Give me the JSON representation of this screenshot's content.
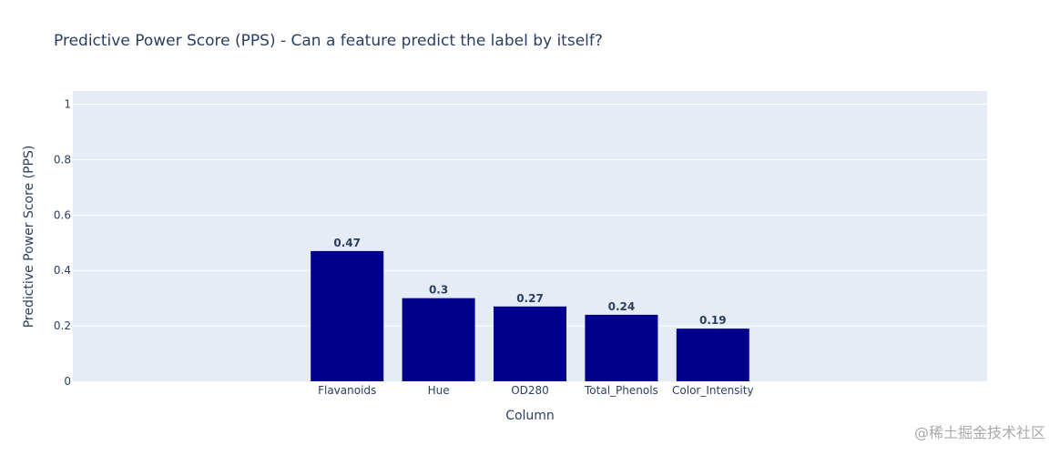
{
  "chart_data": {
    "type": "bar",
    "title": "Predictive Power Score (PPS) - Can a feature predict the label by itself?",
    "xlabel": "Column",
    "ylabel": "Predictive Power Score (PPS)",
    "categories": [
      "Flavanoids",
      "Hue",
      "OD280",
      "Total_Phenols",
      "Color_Intensity"
    ],
    "values": [
      0.47,
      0.3,
      0.27,
      0.24,
      0.19
    ],
    "data_labels": [
      "0.47",
      "0.3",
      "0.27",
      "0.24",
      "0.19"
    ],
    "ylim": [
      0,
      1.05
    ],
    "y_ticks": [
      0,
      0.2,
      0.4,
      0.6,
      0.8,
      1
    ],
    "y_tick_labels": [
      "0",
      "0.2",
      "0.4",
      "0.6",
      "0.8",
      "1"
    ],
    "grid": true,
    "bar_color": "#00008b",
    "plot_bg": "#e5ecf6",
    "text_color": "#2a3f5f"
  },
  "watermark": "@稀土掘金技术社区"
}
